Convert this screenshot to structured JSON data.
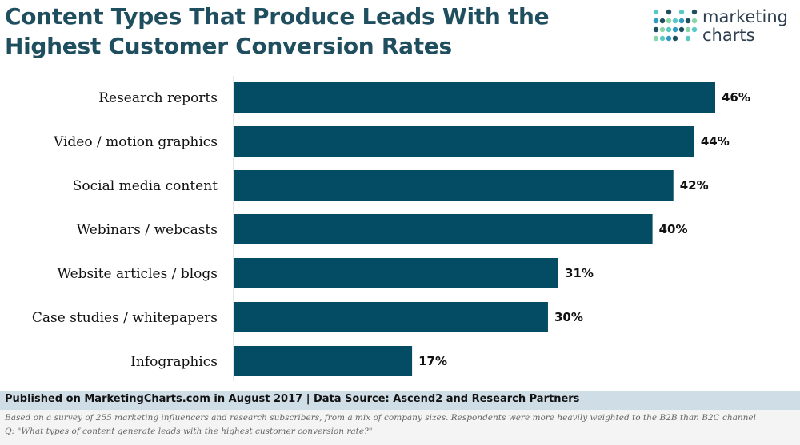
{
  "title": {
    "line1": "Content Types That Produce Leads With the",
    "line2": "Highest Customer Conversion Rates"
  },
  "logo": {
    "line1": "marketing",
    "line2": "charts",
    "dot_colors": [
      "#5bc8c6",
      "#2f9bc1",
      "#1f4e5f",
      "#8bd3a8"
    ]
  },
  "colors": {
    "bar": "#034c63",
    "source_bar_bg": "#cfdde6",
    "title": "#1f4e5f"
  },
  "chart_data": {
    "type": "bar",
    "orientation": "horizontal",
    "categories": [
      "Research reports",
      "Video / motion graphics",
      "Social media content",
      "Webinars / webcasts",
      "Website articles / blogs",
      "Case studies / whitepapers",
      "Infographics"
    ],
    "values": [
      46,
      44,
      42,
      40,
      31,
      30,
      17
    ],
    "value_labels": [
      "46%",
      "44%",
      "42%",
      "40%",
      "31%",
      "30%",
      "17%"
    ],
    "xlim": [
      0,
      46
    ],
    "unit": "%",
    "grid": false,
    "legend": "none"
  },
  "source": "Published on MarketingCharts.com in August 2017 | Data Source: Ascend2 and Research Partners",
  "notes": {
    "line1": "Based on a survey of 255 marketing influencers and research subscribers, from a mix of company sizes. Respondents were more heavily weighted to the B2B than B2C channel",
    "line2": "Q: \"What types of content generate leads with the highest customer conversion rate?\""
  }
}
